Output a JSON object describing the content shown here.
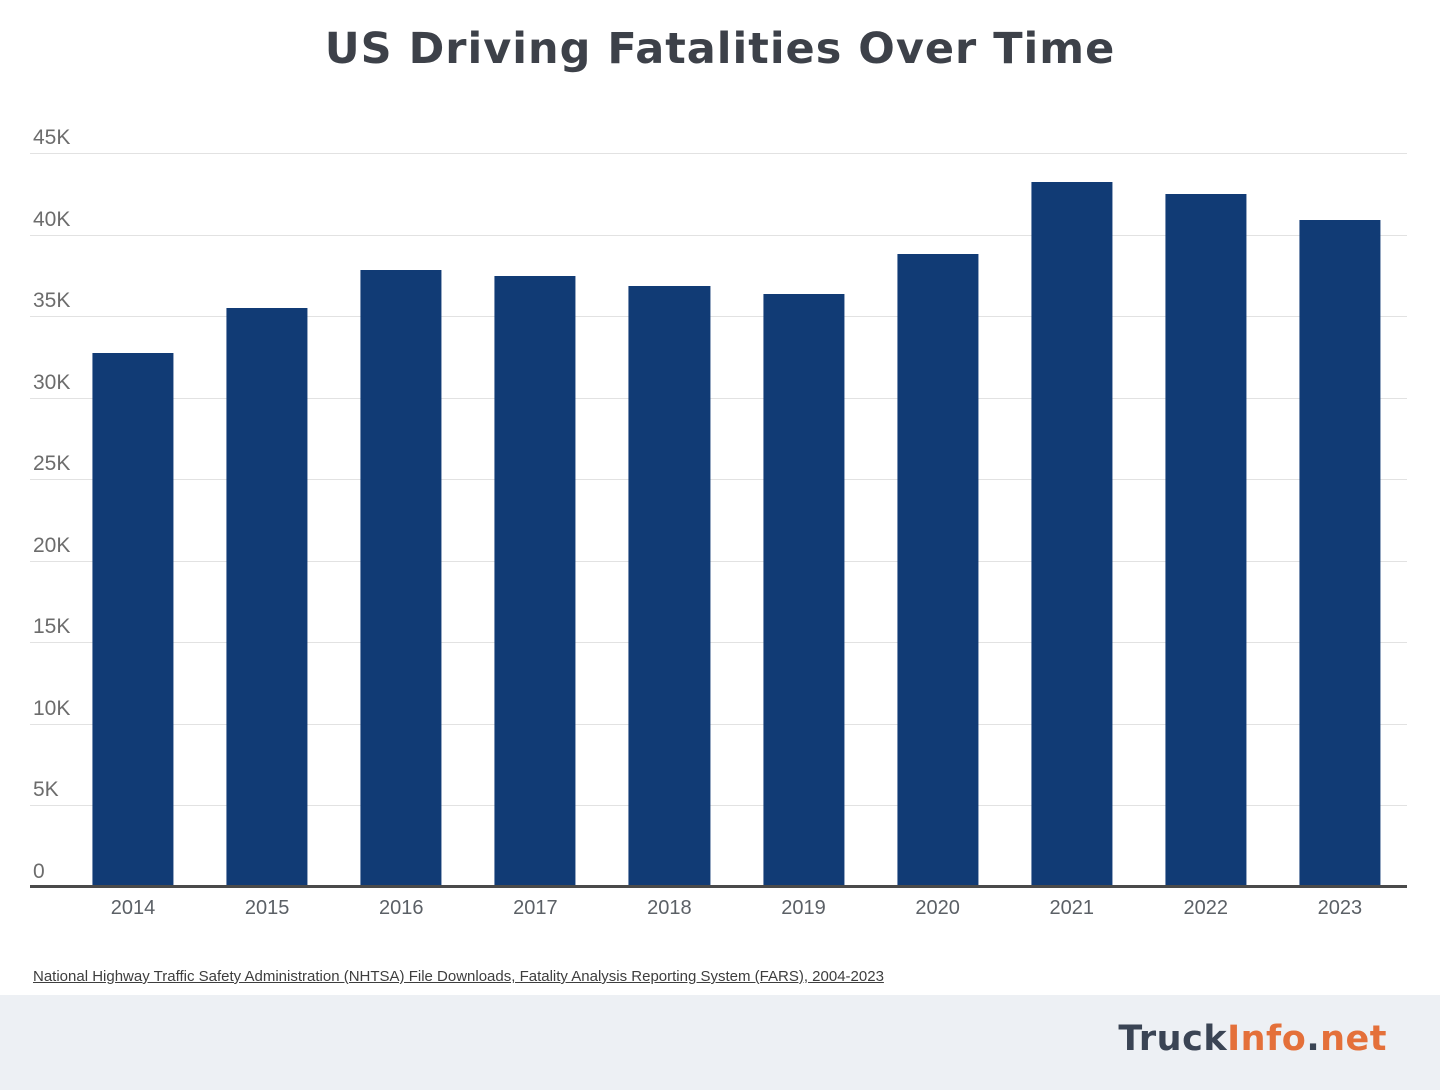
{
  "chart_data": {
    "type": "bar",
    "title": "US Driving Fatalities Over Time",
    "categories": [
      "2014",
      "2015",
      "2016",
      "2017",
      "2018",
      "2019",
      "2020",
      "2021",
      "2022",
      "2023"
    ],
    "values": [
      32744,
      35484,
      37806,
      37473,
      36835,
      36355,
      38824,
      43230,
      42514,
      40901
    ],
    "xlabel": "",
    "ylabel": "",
    "ylim": [
      0,
      45000
    ],
    "y_ticks": [
      "45K",
      "40K",
      "35K",
      "30K",
      "25K",
      "20K",
      "15K",
      "10K",
      "5K",
      "0"
    ],
    "grid": true,
    "legend": false,
    "bar_color": "#113b75",
    "gridline_color": "#e2e2e2",
    "axis_color": "#4a4a4a"
  },
  "source": {
    "text": "National Highway Traffic Safety Administration (NHTSA) File Downloads, Fatality Analysis Reporting System (FARS), 2004-2023"
  },
  "footer": {
    "logo": {
      "part1": "Truck",
      "part2": "Info",
      "part3": ".",
      "part4": "net"
    },
    "logo_colors": {
      "dark": "#3a4454",
      "orange": "#e4703a"
    },
    "background": "#edf0f4"
  }
}
